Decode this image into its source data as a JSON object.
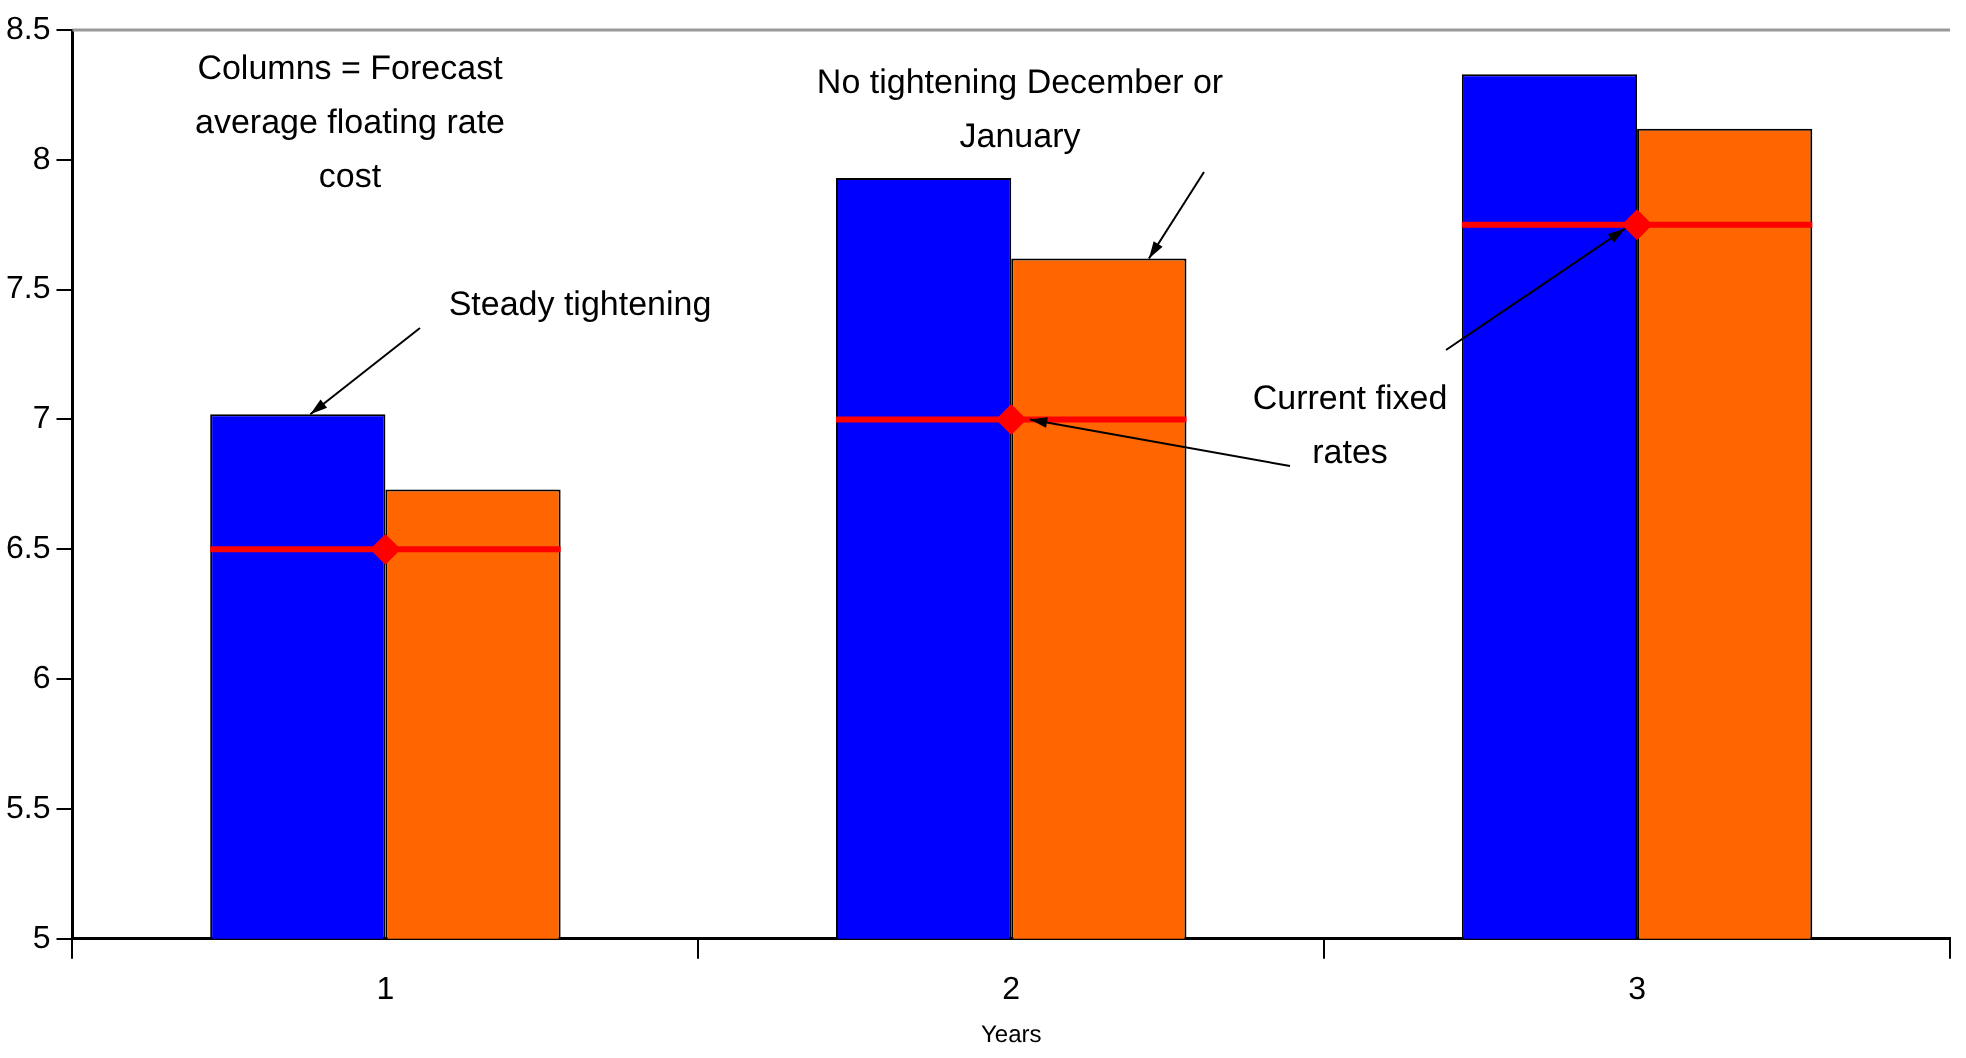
{
  "chart_data": {
    "type": "bar",
    "xlabel": "Years",
    "x": [
      1,
      2,
      3
    ],
    "series": [
      {
        "color": "#0000ff",
        "values": [
          7.02,
          7.93,
          8.33
        ]
      },
      {
        "color": "#ff6600",
        "values": [
          6.73,
          7.62,
          8.12
        ]
      },
      {
        "type": "scatter",
        "color": "#ff0000",
        "x": [
          1,
          2,
          3
        ],
        "values": [
          6.5,
          7.0,
          7.75
        ],
        "xerrors": [
          0.28,
          0.28,
          0.28
        ],
        "marker": "diamond"
      }
    ],
    "xlim": [
      0.5,
      3.5
    ],
    "xticks": [
      {
        "value": 0.5,
        "label": null
      },
      1,
      {
        "value": 1.5,
        "label": null
      },
      2,
      {
        "value": 2.5,
        "label": null
      },
      3,
      {
        "value": 3.5,
        "label": null
      }
    ],
    "ylim": [
      5,
      8.5
    ],
    "yticks": [
      5,
      5.5,
      6,
      6.5,
      7,
      7.5,
      8,
      8.5
    ],
    "grid": false,
    "legend": false,
    "annotations": [
      "Columns = Forecast average floating rate cost",
      {
        "text": "Steady tightening",
        "x": 0.88,
        "y": 7.02
      },
      {
        "text": "No tightening December or January",
        "x": 2.22,
        "y": 7.62
      },
      {
        "text": "Current fixed rates",
        "x": 2.03,
        "y": 7.0
      }
    ]
  }
}
